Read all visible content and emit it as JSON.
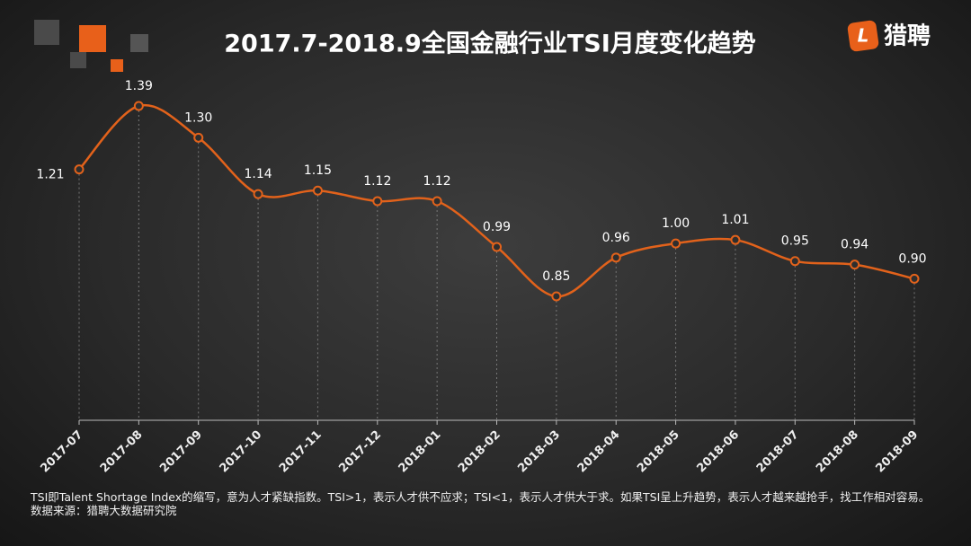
{
  "chart_data": {
    "type": "line",
    "title": "2017.7-2018.9全国金融行业TSI月度变化趋势",
    "categories": [
      "2017-07",
      "2017-08",
      "2017-09",
      "2017-10",
      "2017-11",
      "2017-12",
      "2018-01",
      "2018-02",
      "2018-03",
      "2018-04",
      "2018-05",
      "2018-06",
      "2018-07",
      "2018-08",
      "2018-09"
    ],
    "values": [
      1.21,
      1.39,
      1.3,
      1.14,
      1.15,
      1.12,
      1.12,
      0.99,
      0.85,
      0.96,
      1.0,
      1.01,
      0.95,
      0.94,
      0.9
    ],
    "value_labels": [
      "1.21",
      "1.39",
      "1.30",
      "1.14",
      "1.15",
      "1.12",
      "1.12",
      "0.99",
      "0.85",
      "0.96",
      "1.00",
      "1.01",
      "0.95",
      "0.94",
      "0.90"
    ],
    "color": "#e2621b",
    "notes": [
      "TSI即Talent Shortage Index的缩写，意为人才紧缺指数。TSI>1，表示人才供不应求；TSI<1，表示人才供大于求。如果TSI呈上升趋势，表示人才越来越抢手，找工作相对容易。",
      "数据来源：猎聘大数据研究院"
    ]
  },
  "logo": {
    "icon": "L",
    "name": "猎聘"
  }
}
